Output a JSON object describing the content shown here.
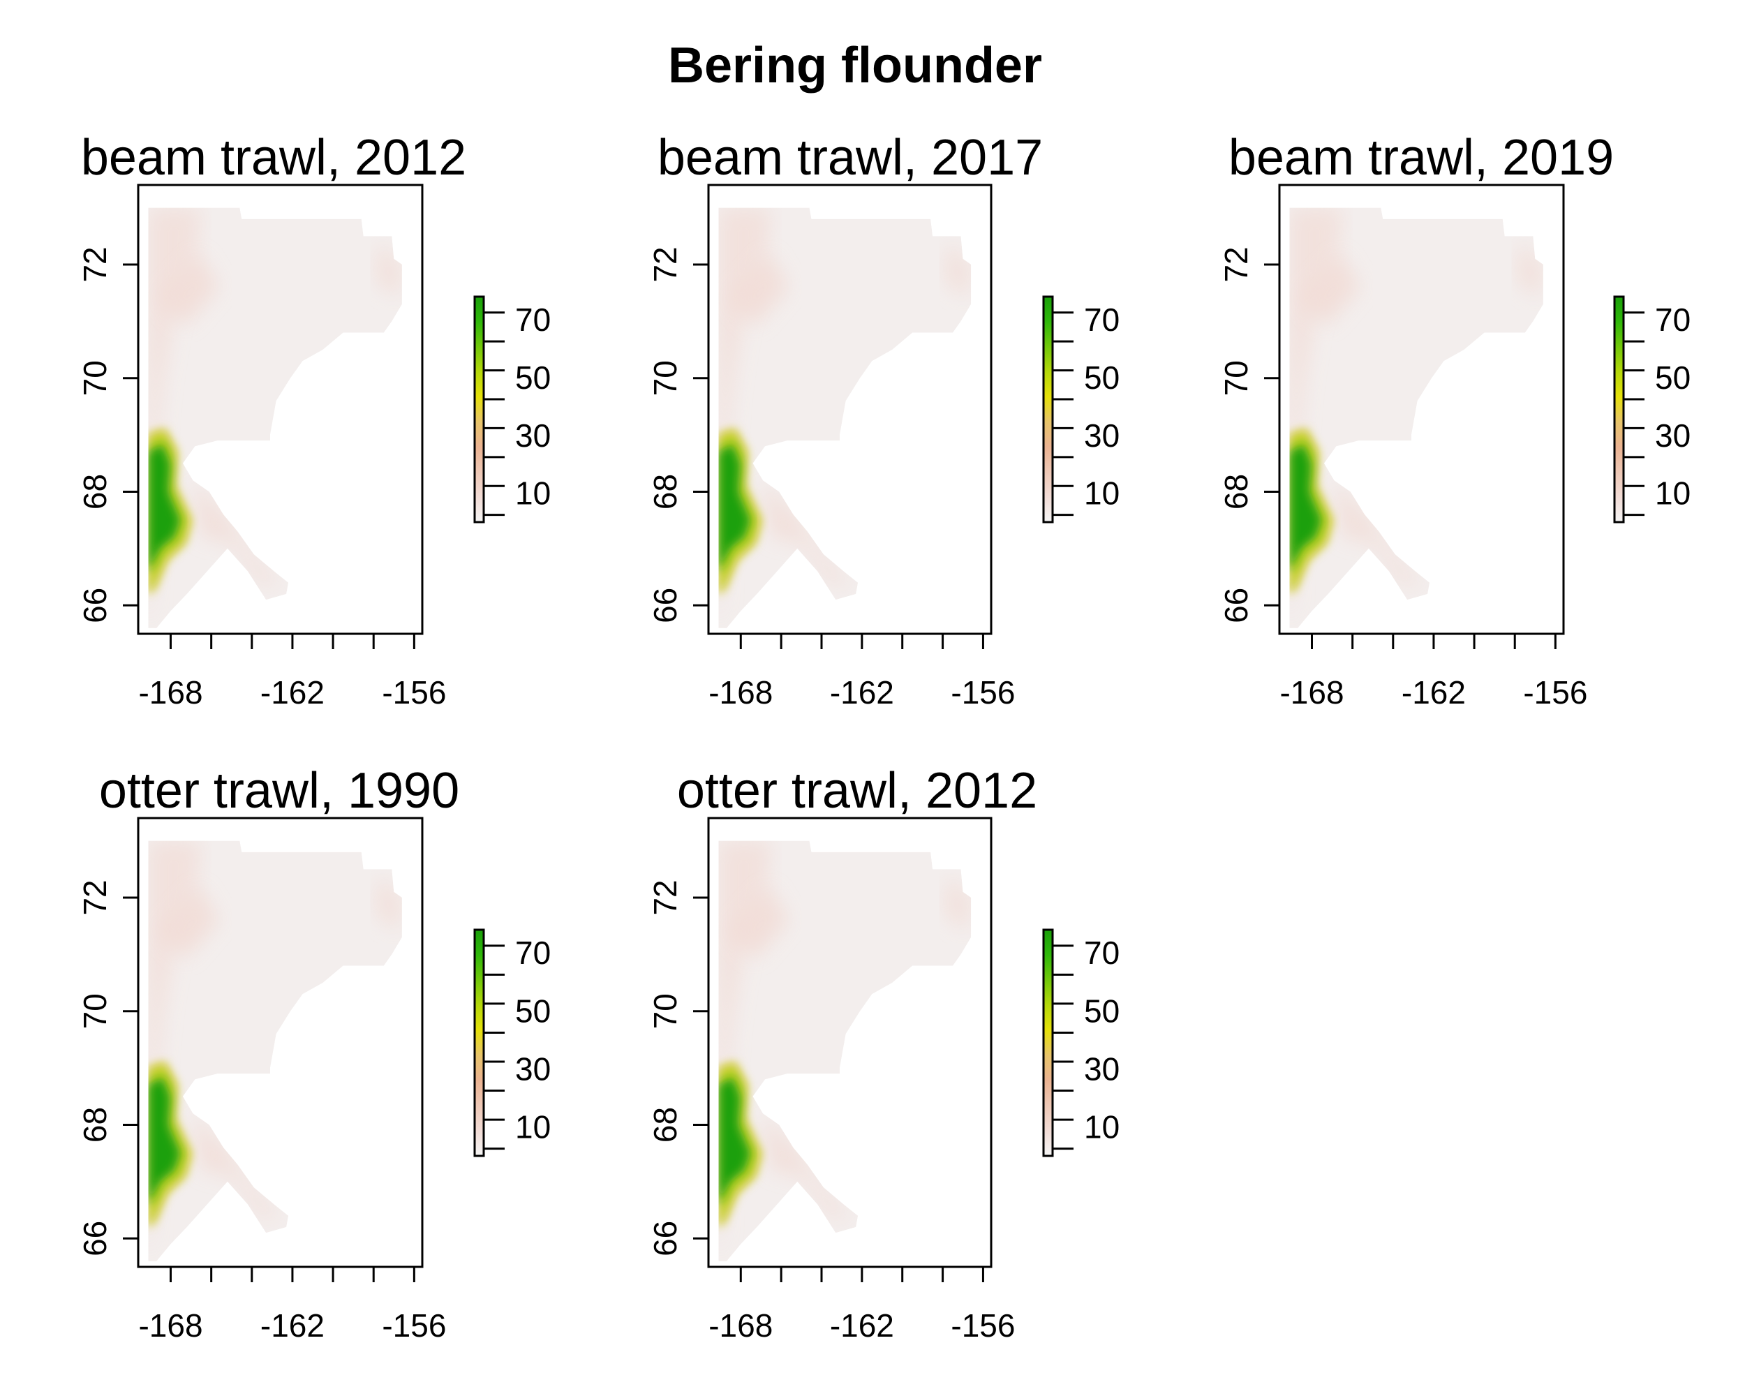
{
  "figure": {
    "title": "Bering flounder"
  },
  "legend": {
    "colors": [
      "#f5f5f5",
      "#f2dcd6",
      "#eec8b6",
      "#ebb392",
      "#e8c46a",
      "#e6e10a",
      "#b5d80a",
      "#72c80a",
      "#2fb80a",
      "#1aa00a"
    ],
    "min": 0,
    "max": 78,
    "ticks": [
      10,
      30,
      50,
      70
    ],
    "tick_labels": [
      "10",
      "30",
      "50",
      "70"
    ]
  },
  "chart_data": [
    {
      "type": "heatmap",
      "title": "beam trawl, 2012",
      "xlabel": "",
      "ylabel": "",
      "xlim": [
        -169.6,
        -155.6
      ],
      "ylim": [
        65.5,
        73.4
      ],
      "x_ticks": [
        -168,
        -166,
        -164,
        -162,
        -160,
        -158,
        -156
      ],
      "x_tick_labels": [
        "-168",
        "",
        "",
        "-162",
        "",
        "",
        "-156"
      ],
      "y_ticks": [
        66,
        68,
        70,
        72
      ],
      "y_tick_labels": [
        "66",
        "68",
        "70",
        "72"
      ],
      "value_range": [
        0,
        78
      ],
      "hotspot": {
        "lon": -168.3,
        "lat": 67.7,
        "peak": 75
      }
    },
    {
      "type": "heatmap",
      "title": "beam trawl, 2017",
      "xlabel": "",
      "ylabel": "",
      "xlim": [
        -169.6,
        -155.6
      ],
      "ylim": [
        65.5,
        73.4
      ],
      "x_ticks": [
        -168,
        -166,
        -164,
        -162,
        -160,
        -158,
        -156
      ],
      "x_tick_labels": [
        "-168",
        "",
        "",
        "-162",
        "",
        "",
        "-156"
      ],
      "y_ticks": [
        66,
        68,
        70,
        72
      ],
      "y_tick_labels": [
        "66",
        "68",
        "70",
        "72"
      ],
      "value_range": [
        0,
        78
      ],
      "hotspot": {
        "lon": -168.3,
        "lat": 67.7,
        "peak": 75
      }
    },
    {
      "type": "heatmap",
      "title": "beam trawl, 2019",
      "xlabel": "",
      "ylabel": "",
      "xlim": [
        -169.6,
        -155.6
      ],
      "ylim": [
        65.5,
        73.4
      ],
      "x_ticks": [
        -168,
        -166,
        -164,
        -162,
        -160,
        -158,
        -156
      ],
      "x_tick_labels": [
        "-168",
        "",
        "",
        "-162",
        "",
        "",
        "-156"
      ],
      "y_ticks": [
        66,
        68,
        70,
        72
      ],
      "y_tick_labels": [
        "66",
        "68",
        "70",
        "72"
      ],
      "value_range": [
        0,
        78
      ],
      "hotspot": {
        "lon": -168.3,
        "lat": 67.7,
        "peak": 75
      }
    },
    {
      "type": "heatmap",
      "title": "otter trawl, 1990",
      "xlabel": "",
      "ylabel": "",
      "xlim": [
        -169.6,
        -155.6
      ],
      "ylim": [
        65.5,
        73.4
      ],
      "x_ticks": [
        -168,
        -166,
        -164,
        -162,
        -160,
        -158,
        -156
      ],
      "x_tick_labels": [
        "-168",
        "",
        "",
        "-162",
        "",
        "",
        "-156"
      ],
      "y_ticks": [
        66,
        68,
        70,
        72
      ],
      "y_tick_labels": [
        "66",
        "68",
        "70",
        "72"
      ],
      "value_range": [
        0,
        78
      ],
      "hotspot": {
        "lon": -168.3,
        "lat": 67.7,
        "peak": 75
      }
    },
    {
      "type": "heatmap",
      "title": "otter trawl, 2012",
      "xlabel": "",
      "ylabel": "",
      "xlim": [
        -169.6,
        -155.6
      ],
      "ylim": [
        65.5,
        73.4
      ],
      "x_ticks": [
        -168,
        -166,
        -164,
        -162,
        -160,
        -158,
        -156
      ],
      "x_tick_labels": [
        "-168",
        "",
        "",
        "-162",
        "",
        "",
        "-156"
      ],
      "y_ticks": [
        66,
        68,
        70,
        72
      ],
      "y_tick_labels": [
        "66",
        "68",
        "70",
        "72"
      ],
      "value_range": [
        0,
        78
      ],
      "hotspot": {
        "lon": -168.3,
        "lat": 67.7,
        "peak": 75
      }
    }
  ]
}
